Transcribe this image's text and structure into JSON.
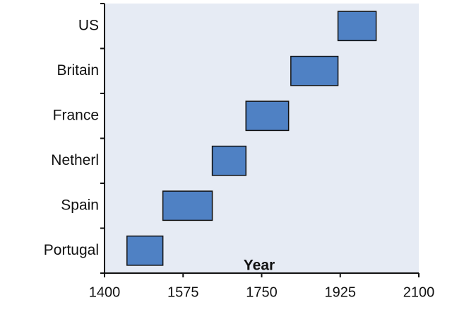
{
  "chart_data": {
    "type": "floating-bar",
    "xlabel": "Year",
    "categories": [
      "Portugal",
      "Spain",
      "Netherl",
      "France",
      "Britain",
      "US"
    ],
    "start": [
      1450,
      1530,
      1640,
      1715,
      1815,
      1920
    ],
    "end": [
      1530,
      1640,
      1715,
      1810,
      1920,
      2005
    ],
    "color": "#4f81c4",
    "edge_color": "#111111",
    "background": "#e6ebf4",
    "xlim": [
      1400,
      2100
    ],
    "xticks": [
      1400,
      1575,
      1750,
      1925,
      2100
    ],
    "grid": false
  }
}
